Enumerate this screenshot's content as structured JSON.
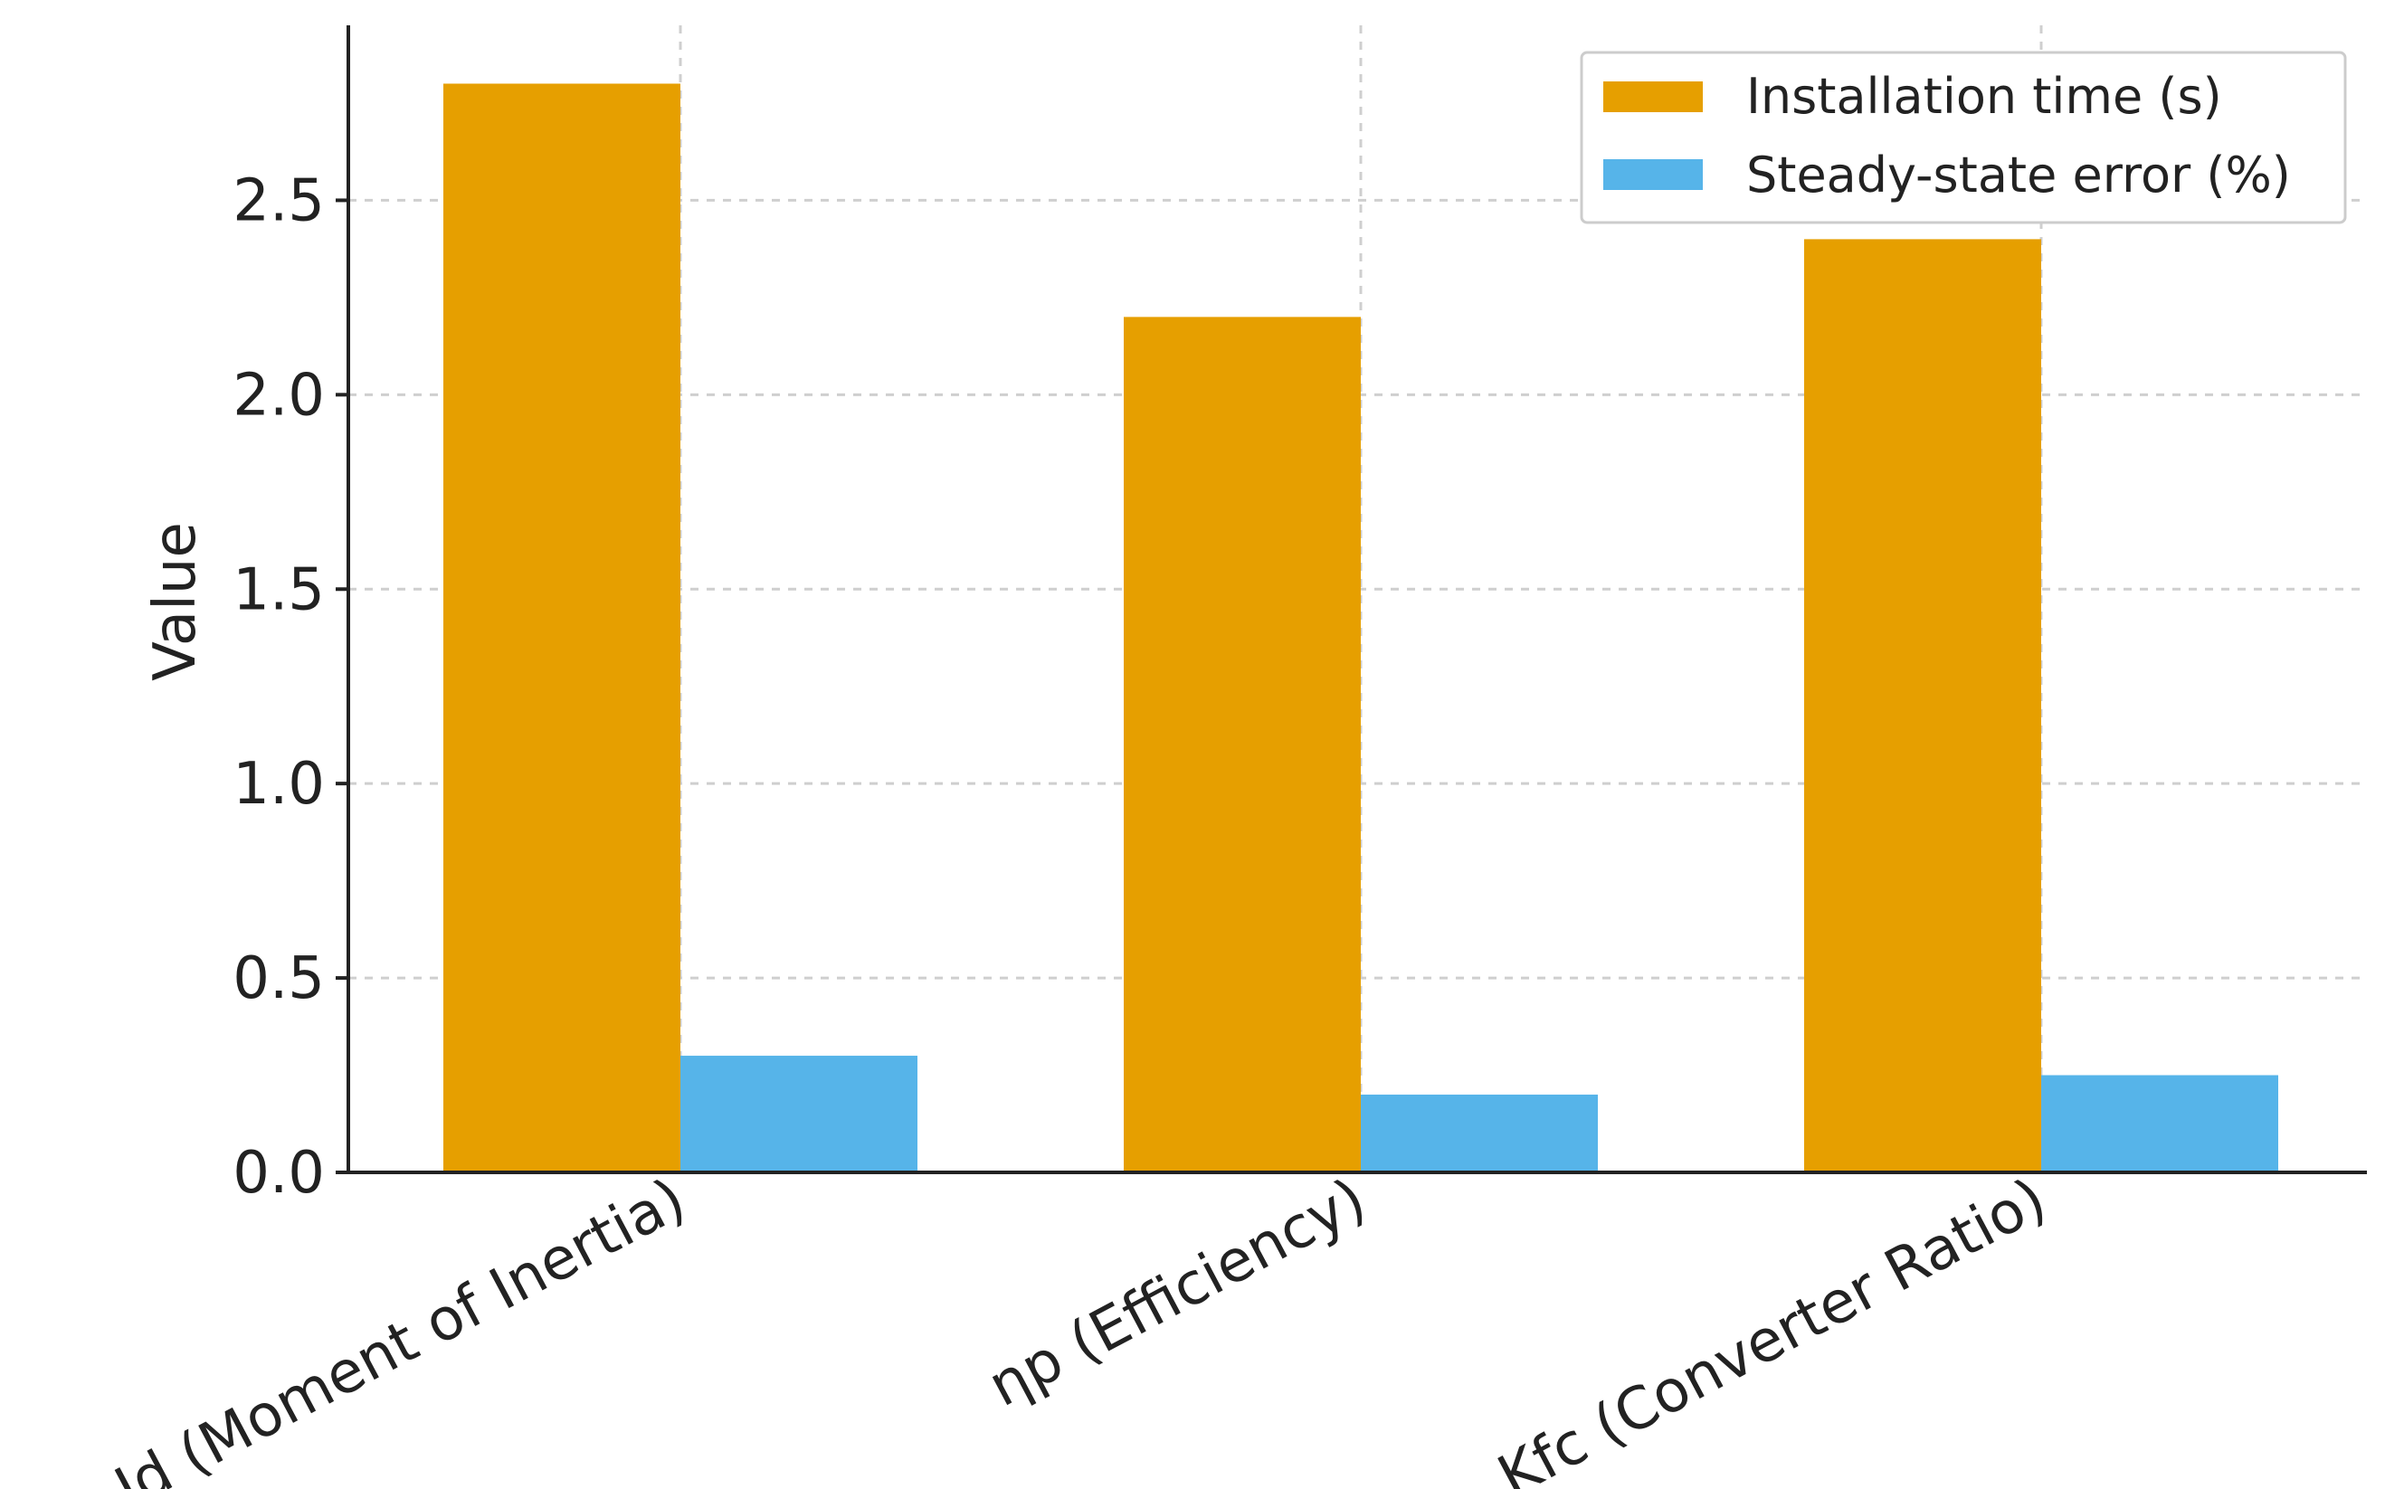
{
  "chart_data": {
    "type": "bar",
    "title": "",
    "xlabel": "",
    "ylabel": "Value",
    "ylim": [
      0,
      2.95
    ],
    "yticks": [
      "0.0",
      "0.5",
      "1.0",
      "1.5",
      "2.0",
      "2.5"
    ],
    "categories": [
      "Jd (Moment of Inertia)",
      "ηp (Efficiency)",
      "Kfc (Converter Ratio)"
    ],
    "series": [
      {
        "name": "Installation time (s)",
        "color": "#E69F00",
        "values": [
          2.8,
          2.2,
          2.4
        ]
      },
      {
        "name": "Steady-state error (%)",
        "color": "#56B4E9",
        "values": [
          0.3,
          0.2,
          0.25
        ]
      }
    ],
    "grid": true,
    "legend_position": "top-right"
  }
}
